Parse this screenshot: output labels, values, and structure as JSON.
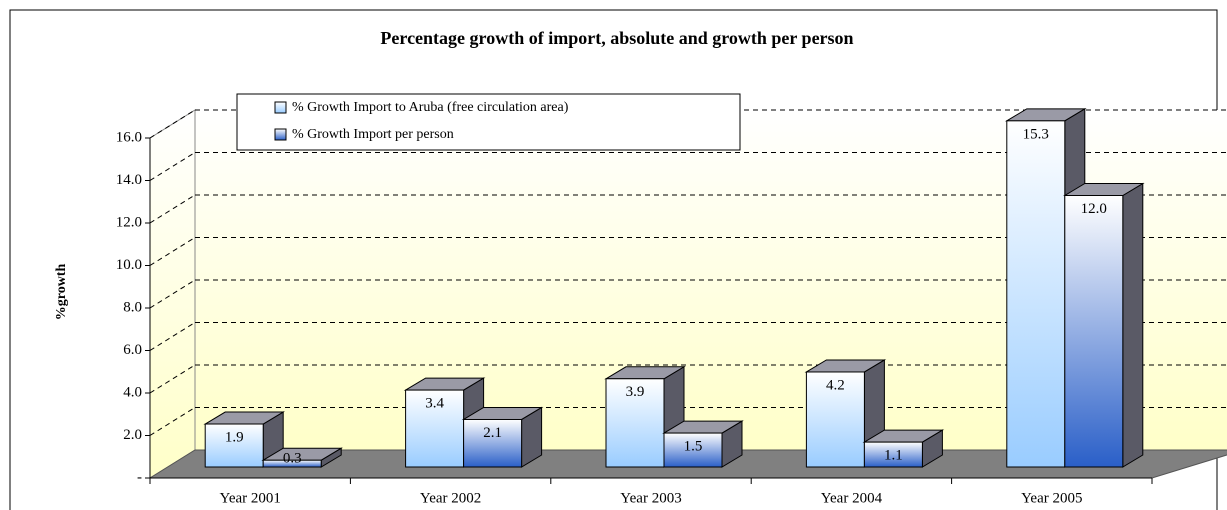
{
  "chart_data": {
    "type": "bar3d",
    "title": "Percentage growth of import, absolute and growth per person",
    "y_label": "%growth",
    "categories": [
      "Year 2001",
      "Year 2002",
      "Year 2003",
      "Year 2004",
      "Year 2005"
    ],
    "series": [
      {
        "name": "% Growth Import to Aruba (free circulation area)",
        "color": "#99ccff",
        "values": [
          1.9,
          3.4,
          3.9,
          4.2,
          15.3
        ]
      },
      {
        "name": "% Growth Import per person",
        "color": "#2a5fc8",
        "values": [
          0.3,
          2.1,
          1.5,
          1.1,
          12.0
        ],
        "value_labels": [
          "0.3",
          "2.1",
          "1.5",
          "1.1",
          "12.0"
        ]
      }
    ],
    "ylim": [
      0,
      16
    ],
    "yticks": [
      {
        "value": 0,
        "label": "-"
      },
      {
        "value": 2,
        "label": "2.0"
      },
      {
        "value": 4,
        "label": "4.0"
      },
      {
        "value": 6,
        "label": "6.0"
      },
      {
        "value": 8,
        "label": "8.0"
      },
      {
        "value": 10,
        "label": "10.0"
      },
      {
        "value": 12,
        "label": "12.0"
      },
      {
        "value": 14,
        "label": "14.0"
      },
      {
        "value": 16,
        "label": "16.0"
      }
    ],
    "grid": true
  }
}
